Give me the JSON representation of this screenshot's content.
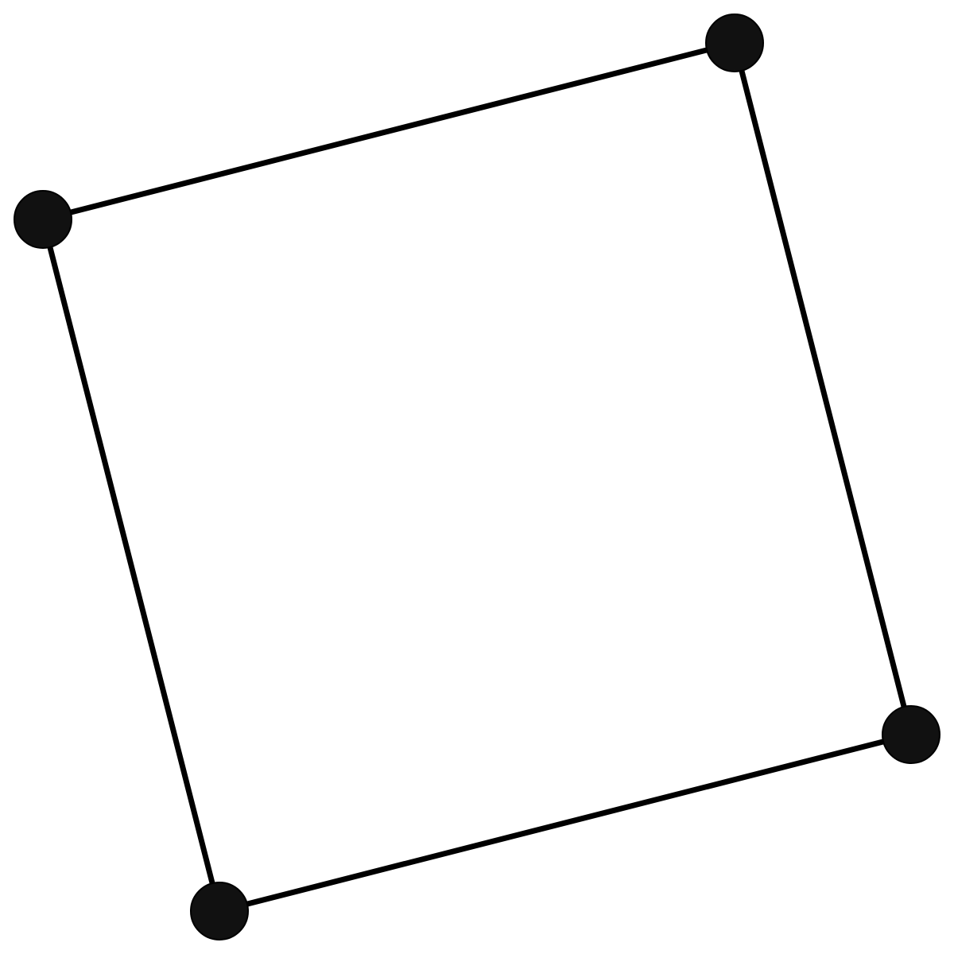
{
  "diagram": {
    "shape": "quadrilateral",
    "edge_color": "#000000",
    "vertex_color": "#111111",
    "vertex_outline_color": "#000000",
    "vertices": [
      {
        "id": "vertex-1",
        "label": ""
      },
      {
        "id": "vertex-2",
        "label": ""
      },
      {
        "id": "vertex-3",
        "label": ""
      },
      {
        "id": "vertex-4",
        "label": ""
      }
    ],
    "edges": [
      {
        "from": "vertex-1",
        "to": "vertex-2"
      },
      {
        "from": "vertex-2",
        "to": "vertex-3"
      },
      {
        "from": "vertex-3",
        "to": "vertex-4"
      },
      {
        "from": "vertex-4",
        "to": "vertex-1"
      }
    ]
  }
}
